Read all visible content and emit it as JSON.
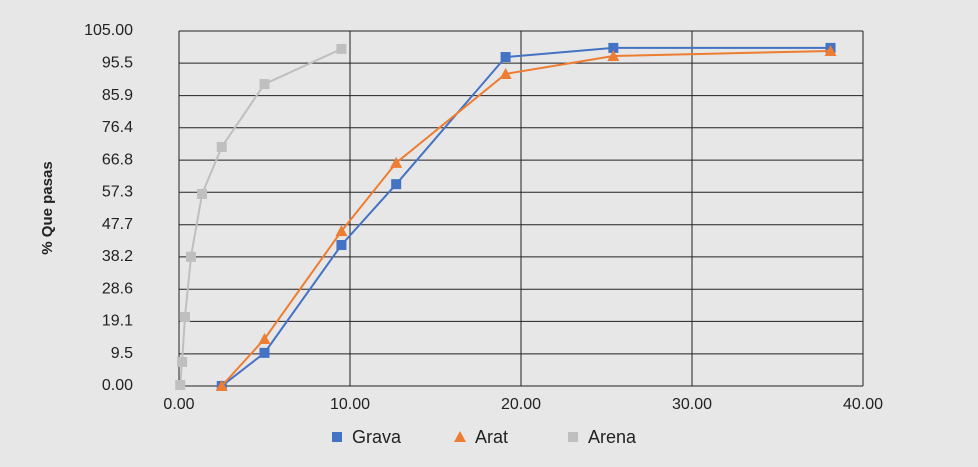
{
  "chart_data": {
    "type": "line",
    "ylabel": "% Que pasas",
    "xlim": [
      0,
      40
    ],
    "xticks": [
      {
        "value": 0,
        "label": "0.00"
      },
      {
        "value": 10,
        "label": "10.00"
      },
      {
        "value": 20,
        "label": "20.00"
      },
      {
        "value": 30,
        "label": "30.00"
      },
      {
        "value": 40,
        "label": "40.00"
      }
    ],
    "ylim": [
      0,
      105
    ],
    "yticks": [
      {
        "value": 0,
        "label": "0.00"
      },
      9.5,
      19.1,
      28.6,
      38.2,
      47.7,
      57.3,
      66.8,
      76.4,
      85.9,
      95.5,
      {
        "value": 105,
        "label": "105.00"
      }
    ],
    "grid": true,
    "legend": "bottom",
    "series": [
      {
        "name": "Grava",
        "color": "#4472c4",
        "marker": "square",
        "x": [
          2.5,
          5.0,
          9.5,
          12.7,
          19.1,
          25.4,
          38.1
        ],
        "values": [
          0,
          9.8,
          41.7,
          59.7,
          97.3,
          100,
          100
        ]
      },
      {
        "name": "Arat",
        "color": "#ed7d31",
        "marker": "triangle",
        "x": [
          2.5,
          5.0,
          9.5,
          12.7,
          19.1,
          25.4,
          38.1
        ],
        "values": [
          0,
          13.9,
          45.8,
          66,
          92.3,
          97.6,
          99.1
        ]
      },
      {
        "name": "Arena",
        "color": "#bfbfbf",
        "marker": "square",
        "x": [
          0.07,
          0.18,
          0.35,
          0.7,
          1.35,
          2.5,
          5.0,
          9.5
        ],
        "values": [
          0.3,
          7.1,
          20.4,
          38.2,
          56.8,
          70.7,
          89.3,
          99.7
        ]
      }
    ]
  }
}
